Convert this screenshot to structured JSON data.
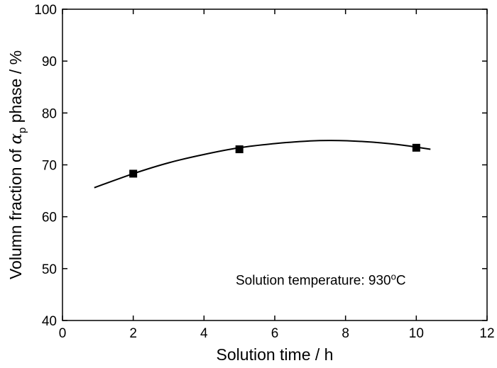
{
  "chart_data": {
    "type": "scatter",
    "title": "",
    "xlabel": "Solution time / h",
    "ylabel": {
      "prefix": "Volumn fraction of ",
      "symbol": "α",
      "subscript": "p",
      "suffix": " phase / %"
    },
    "xlim": [
      0,
      12
    ],
    "ylim": [
      40,
      100
    ],
    "xticks": [
      0,
      2,
      4,
      6,
      8,
      10,
      12
    ],
    "yticks": [
      40,
      50,
      60,
      70,
      80,
      90,
      100
    ],
    "grid": false,
    "series": [
      {
        "marker": "square",
        "color": "#000000",
        "points": [
          {
            "x": 2,
            "y": 68.3
          },
          {
            "x": 5,
            "y": 73.0
          },
          {
            "x": 10,
            "y": 73.3
          }
        ]
      }
    ],
    "fit_curve": {
      "color": "#000000",
      "points": [
        {
          "x": 0.9,
          "y": 65.6
        },
        {
          "x": 2,
          "y": 68.3
        },
        {
          "x": 3,
          "y": 70.4
        },
        {
          "x": 4,
          "y": 72.0
        },
        {
          "x": 5,
          "y": 73.3
        },
        {
          "x": 6,
          "y": 74.1
        },
        {
          "x": 7,
          "y": 74.6
        },
        {
          "x": 7.6,
          "y": 74.7
        },
        {
          "x": 8.5,
          "y": 74.5
        },
        {
          "x": 9.5,
          "y": 73.9
        },
        {
          "x": 10.4,
          "y": 73.0
        }
      ]
    },
    "annotation": {
      "prefix": "Solution temperature: 930",
      "superscript": "o",
      "suffix": "C"
    }
  }
}
